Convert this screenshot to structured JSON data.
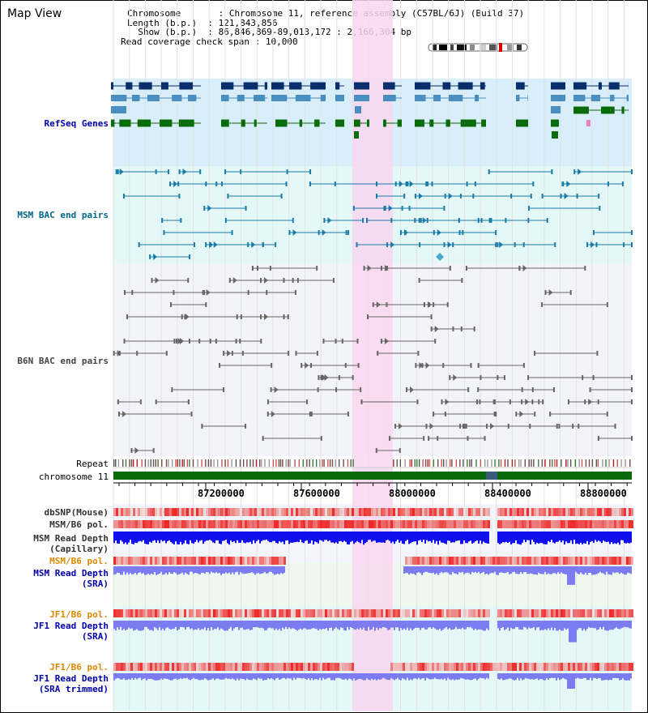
{
  "title": "Map View",
  "info": {
    "rows": [
      {
        "label": "Chromosome      ",
        "value": "Chromosome 11, reference assembly (C57BL/6J) (Build 37)"
      },
      {
        "label": "Length (b.p.)  ",
        "value": "121,843,856"
      },
      {
        "label": "  Show (b.p.)  ",
        "value": "86,846,869-89,013,172 : 2,166,304 bp"
      },
      {
        "label": "Read coverage check span",
        "value": "10,000"
      }
    ]
  },
  "tracks": {
    "refseq": "RefSeq Genes",
    "msm_bac": "MSM BAC end pairs",
    "b6n_bac": "B6N BAC end pairs",
    "repeat": "Repeat",
    "chromosome": "chromosome 11",
    "dbsnp": "dbSNP(Mouse)",
    "msm_b6_pol_1": "MSM/B6 pol.",
    "msm_read_depth_cap_1": "MSM Read Depth",
    "msm_read_depth_cap_2": "(Capillary)",
    "msm_b6_pol_2": "MSM/B6 pol.",
    "msm_read_depth_sra_1": "MSM Read Depth",
    "msm_read_depth_sra_2": "(SRA)",
    "jf1_b6_pol_1": "JF1/B6 pol.",
    "jf1_read_depth_sra_1": "JF1 Read Depth",
    "jf1_read_depth_sra_2": "(SRA)",
    "jf1_b6_pol_2": "JF1/B6 pol.",
    "jf1_read_depth_trim_1": "JF1 Read Depth",
    "jf1_read_depth_trim_2": "(SRA trimmed)"
  },
  "axis": {
    "ticks": [
      "87200000",
      "87600000",
      "88000000",
      "88400000",
      "88800000"
    ]
  },
  "colors": {
    "highlight": "#f9d7f0",
    "refseq_bg": "#d8eefa",
    "msm_bg": "#e4f8f8",
    "b6n_bg": "#f3f3fb",
    "gene_dark": "#0a2d6b",
    "gene_mid": "#4a8ec0",
    "gene_green": "#0a6b0a",
    "depth_blue": "#1010ee",
    "depth_light": "#7c7cf0",
    "pol_red": "#ee2222"
  }
}
